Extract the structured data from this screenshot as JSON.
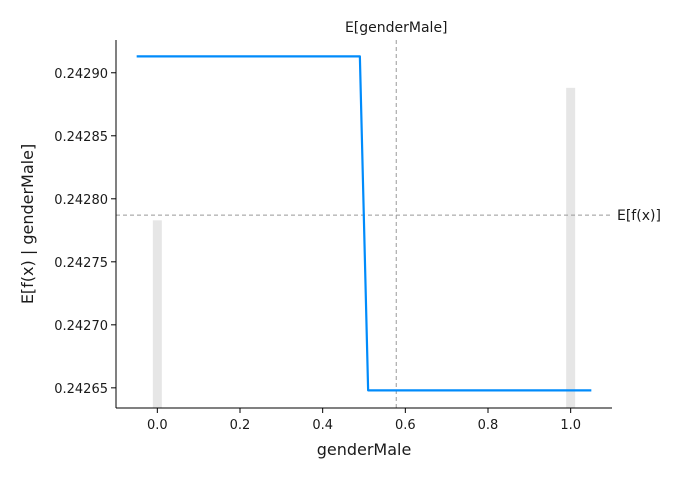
{
  "chart_data": {
    "type": "line",
    "xlabel": "genderMale",
    "ylabel": "E[f(x) | genderMale]",
    "xlim": [
      -0.1,
      1.1
    ],
    "ylim": [
      0.242634,
      0.242926
    ],
    "x_ticks": [
      0.0,
      0.2,
      0.4,
      0.6,
      0.8,
      1.0
    ],
    "x_tick_labels": [
      "0.0",
      "0.2",
      "0.4",
      "0.6",
      "0.8",
      "1.0"
    ],
    "y_ticks": [
      0.24265,
      0.2427,
      0.24275,
      0.2428,
      0.24285,
      0.2429
    ],
    "y_tick_labels": [
      "0.24265",
      "0.24270",
      "0.24275",
      "0.24280",
      "0.24285",
      "0.24290"
    ],
    "series": [
      {
        "color": "#008bfb",
        "x": [
          -0.05,
          0.49,
          0.51,
          1.05
        ],
        "y": [
          0.242913,
          0.242913,
          0.242648,
          0.242648
        ]
      }
    ],
    "histogram": {
      "color": "#e6e6e6",
      "bins": [
        {
          "x": 0.0,
          "relative_height": 0.51
        },
        {
          "x": 1.0,
          "relative_height": 0.87
        }
      ]
    },
    "reference_lines": {
      "expected_x": {
        "value": 0.578,
        "label": "E[genderMale]"
      },
      "expected_y": {
        "value": 0.242787,
        "label": "E[f(x)]"
      }
    },
    "grid": false,
    "legend": "none"
  }
}
